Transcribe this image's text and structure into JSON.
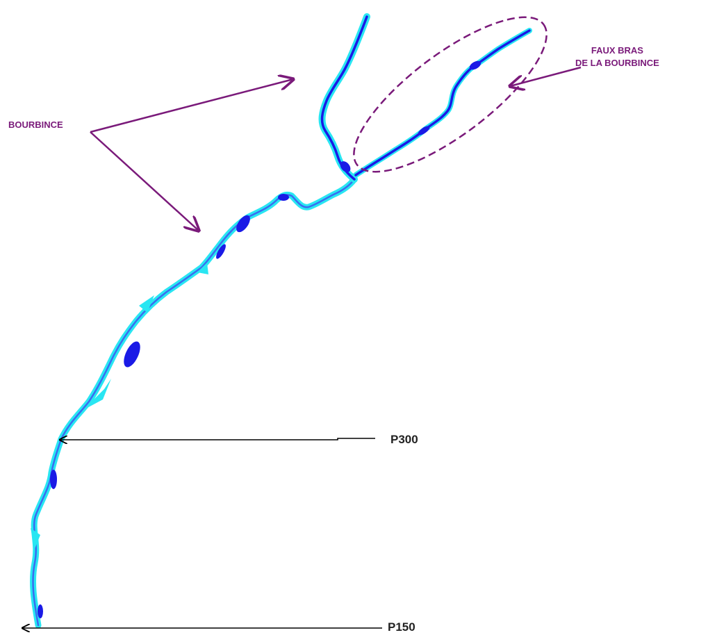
{
  "labels": {
    "bourbince": "BOURBINCE",
    "faux_bras_line1": "FAUX BRAS",
    "faux_bras_line2": "DE LA BOURBINCE",
    "p300": "P300",
    "p150": "P150"
  },
  "colors": {
    "water_light": "#29e6f2",
    "water_deep": "#1a1ae6",
    "water_mid": "#3a6cf0",
    "annotation_purple": "#7a1a7a",
    "pointer_black": "#000000"
  }
}
